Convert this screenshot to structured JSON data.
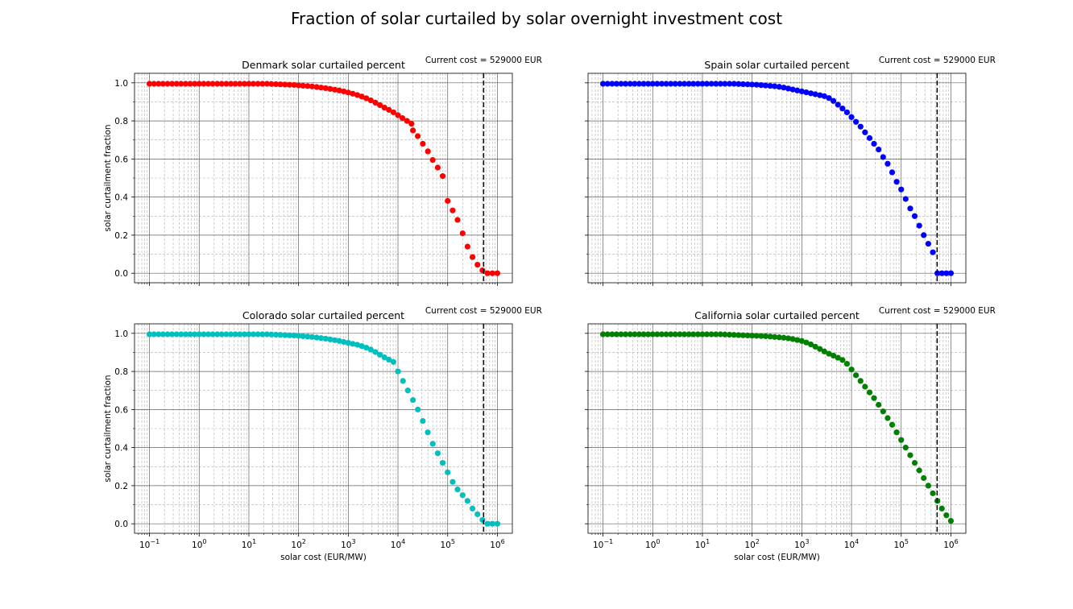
{
  "figure_title": "Fraction of solar curtailed by solar overnight investment cost",
  "chart_data": [
    {
      "type": "scatter",
      "title": "Denmark solar curtailed percent",
      "annotation": "Current cost = 529000 EUR",
      "current_cost": 529000,
      "color": "#ff0000",
      "xscale": "log",
      "xlim": [
        0.05,
        2000000
      ],
      "ylim": [
        -0.05,
        1.05
      ],
      "grid": true,
      "xlabel": "",
      "ylabel": "solar curtailment fraction",
      "x": [
        0.1,
        0.123,
        0.152,
        0.187,
        0.231,
        0.284,
        0.351,
        0.433,
        0.534,
        0.658,
        0.811,
        1.0,
        1.23,
        1.52,
        1.87,
        2.31,
        2.84,
        3.51,
        4.33,
        5.34,
        6.58,
        8.11,
        10,
        12.3,
        15.2,
        18.7,
        23.1,
        28.4,
        35.1,
        43.3,
        53.4,
        65.8,
        81.1,
        100,
        123,
        152,
        187,
        231,
        284,
        351,
        433,
        534,
        658,
        811,
        1000,
        1230,
        1520,
        1870,
        2310,
        2840,
        3510,
        4330,
        5340,
        6580,
        8110,
        10000,
        12300,
        15200,
        18700,
        20000,
        25000,
        31600,
        40000,
        50000,
        63100,
        79400,
        100000,
        126000,
        158000,
        200000,
        251000,
        316000,
        398000,
        501000,
        631000,
        794000,
        1000000
      ],
      "y": [
        0.995,
        0.995,
        0.995,
        0.995,
        0.995,
        0.995,
        0.995,
        0.995,
        0.995,
        0.995,
        0.995,
        0.995,
        0.995,
        0.995,
        0.995,
        0.995,
        0.995,
        0.995,
        0.995,
        0.995,
        0.995,
        0.995,
        0.995,
        0.995,
        0.995,
        0.995,
        0.995,
        0.994,
        0.993,
        0.992,
        0.991,
        0.99,
        0.989,
        0.987,
        0.985,
        0.983,
        0.981,
        0.978,
        0.975,
        0.972,
        0.968,
        0.964,
        0.96,
        0.955,
        0.949,
        0.943,
        0.936,
        0.928,
        0.919,
        0.908,
        0.896,
        0.883,
        0.87,
        0.858,
        0.845,
        0.83,
        0.815,
        0.8,
        0.785,
        0.75,
        0.72,
        0.68,
        0.64,
        0.595,
        0.555,
        0.51,
        0.38,
        0.33,
        0.28,
        0.21,
        0.14,
        0.085,
        0.045,
        0.015,
        0.0,
        0.0,
        0.0
      ]
    },
    {
      "type": "scatter",
      "title": "Spain solar curtailed percent",
      "annotation": "Current cost = 529000 EUR",
      "current_cost": 529000,
      "color": "#0000ff",
      "xscale": "log",
      "xlim": [
        0.05,
        2000000
      ],
      "ylim": [
        -0.05,
        1.05
      ],
      "grid": true,
      "xlabel": "",
      "ylabel": "",
      "x": [
        0.1,
        0.123,
        0.152,
        0.187,
        0.231,
        0.284,
        0.351,
        0.433,
        0.534,
        0.658,
        0.811,
        1.0,
        1.23,
        1.52,
        1.87,
        2.31,
        2.84,
        3.51,
        4.33,
        5.34,
        6.58,
        8.11,
        10,
        12.3,
        15.2,
        18.7,
        23.1,
        28.4,
        35.1,
        43.3,
        53.4,
        65.8,
        81.1,
        100,
        123,
        152,
        187,
        231,
        284,
        351,
        433,
        534,
        658,
        811,
        1000,
        1230,
        1520,
        1870,
        2310,
        2840,
        3510,
        4330,
        5340,
        6580,
        8110,
        10000,
        12300,
        15200,
        18700,
        23100,
        28400,
        35100,
        43300,
        53400,
        65800,
        81100,
        100000,
        123000,
        152000,
        187000,
        231000,
        284000,
        351000,
        433000,
        534000,
        658000,
        811000,
        1000000
      ],
      "y": [
        0.995,
        0.995,
        0.995,
        0.995,
        0.995,
        0.995,
        0.995,
        0.995,
        0.995,
        0.995,
        0.995,
        0.995,
        0.995,
        0.995,
        0.995,
        0.995,
        0.995,
        0.995,
        0.995,
        0.995,
        0.995,
        0.995,
        0.995,
        0.995,
        0.995,
        0.995,
        0.995,
        0.995,
        0.995,
        0.995,
        0.994,
        0.993,
        0.992,
        0.991,
        0.99,
        0.988,
        0.986,
        0.984,
        0.982,
        0.979,
        0.975,
        0.97,
        0.965,
        0.96,
        0.955,
        0.95,
        0.945,
        0.94,
        0.935,
        0.93,
        0.92,
        0.905,
        0.885,
        0.865,
        0.845,
        0.82,
        0.795,
        0.77,
        0.74,
        0.71,
        0.68,
        0.65,
        0.61,
        0.575,
        0.53,
        0.48,
        0.44,
        0.39,
        0.34,
        0.3,
        0.25,
        0.2,
        0.155,
        0.11,
        0.0,
        0.0,
        0.0,
        0.0
      ]
    },
    {
      "type": "scatter",
      "title": "Colorado solar curtailed percent",
      "annotation": "Current cost = 529000 EUR",
      "current_cost": 529000,
      "color": "#00bfbf",
      "xscale": "log",
      "xlim": [
        0.05,
        2000000
      ],
      "ylim": [
        -0.05,
        1.05
      ],
      "grid": true,
      "xlabel": "solar cost (EUR/MW)",
      "ylabel": "solar curtailment fraction",
      "x": [
        0.1,
        0.123,
        0.152,
        0.187,
        0.231,
        0.284,
        0.351,
        0.433,
        0.534,
        0.658,
        0.811,
        1.0,
        1.23,
        1.52,
        1.87,
        2.31,
        2.84,
        3.51,
        4.33,
        5.34,
        6.58,
        8.11,
        10,
        12.3,
        15.2,
        18.7,
        23.1,
        28.4,
        35.1,
        43.3,
        53.4,
        65.8,
        81.1,
        100,
        123,
        152,
        187,
        231,
        284,
        351,
        433,
        534,
        658,
        811,
        1000,
        1230,
        1520,
        1870,
        2310,
        2840,
        3510,
        4330,
        5340,
        6580,
        8110,
        10000,
        12600,
        15800,
        20000,
        25100,
        31600,
        39800,
        50100,
        63100,
        79400,
        100000,
        126000,
        158000,
        200000,
        251000,
        316000,
        398000,
        501000,
        631000,
        794000,
        1000000
      ],
      "y": [
        0.995,
        0.995,
        0.995,
        0.995,
        0.995,
        0.995,
        0.995,
        0.995,
        0.995,
        0.995,
        0.995,
        0.995,
        0.995,
        0.995,
        0.995,
        0.995,
        0.995,
        0.995,
        0.995,
        0.995,
        0.995,
        0.995,
        0.995,
        0.995,
        0.995,
        0.995,
        0.995,
        0.994,
        0.993,
        0.992,
        0.991,
        0.99,
        0.989,
        0.987,
        0.985,
        0.983,
        0.981,
        0.978,
        0.975,
        0.972,
        0.968,
        0.964,
        0.96,
        0.955,
        0.95,
        0.945,
        0.94,
        0.933,
        0.925,
        0.915,
        0.902,
        0.888,
        0.874,
        0.862,
        0.85,
        0.8,
        0.75,
        0.7,
        0.65,
        0.6,
        0.54,
        0.48,
        0.42,
        0.37,
        0.32,
        0.27,
        0.22,
        0.18,
        0.15,
        0.12,
        0.08,
        0.05,
        0.02,
        0.0,
        0.0,
        0.0
      ]
    },
    {
      "type": "scatter",
      "title": "California solar curtailed percent",
      "annotation": "Current cost = 529000 EUR",
      "current_cost": 529000,
      "color": "#008000",
      "xscale": "log",
      "xlim": [
        0.05,
        2000000
      ],
      "ylim": [
        -0.05,
        1.05
      ],
      "grid": true,
      "xlabel": "solar cost (EUR/MW)",
      "ylabel": "",
      "x": [
        0.1,
        0.123,
        0.152,
        0.187,
        0.231,
        0.284,
        0.351,
        0.433,
        0.534,
        0.658,
        0.811,
        1.0,
        1.23,
        1.52,
        1.87,
        2.31,
        2.84,
        3.51,
        4.33,
        5.34,
        6.58,
        8.11,
        10,
        12.3,
        15.2,
        18.7,
        23.1,
        28.4,
        35.1,
        43.3,
        53.4,
        65.8,
        81.1,
        100,
        123,
        152,
        187,
        231,
        284,
        351,
        433,
        534,
        658,
        811,
        1000,
        1230,
        1520,
        1870,
        2310,
        2840,
        3510,
        4330,
        5340,
        6580,
        8110,
        10000,
        12300,
        15200,
        18700,
        23100,
        28400,
        35100,
        43300,
        53400,
        65800,
        81100,
        100000,
        123000,
        152000,
        187000,
        231000,
        284000,
        351000,
        433000,
        534000,
        658000,
        811000,
        1000000
      ],
      "y": [
        0.995,
        0.995,
        0.995,
        0.995,
        0.995,
        0.995,
        0.995,
        0.995,
        0.995,
        0.995,
        0.995,
        0.995,
        0.995,
        0.995,
        0.995,
        0.995,
        0.995,
        0.995,
        0.995,
        0.995,
        0.995,
        0.995,
        0.995,
        0.995,
        0.995,
        0.995,
        0.995,
        0.994,
        0.993,
        0.992,
        0.991,
        0.99,
        0.989,
        0.988,
        0.987,
        0.986,
        0.985,
        0.983,
        0.981,
        0.979,
        0.977,
        0.974,
        0.97,
        0.965,
        0.96,
        0.952,
        0.942,
        0.93,
        0.918,
        0.905,
        0.893,
        0.883,
        0.872,
        0.86,
        0.84,
        0.81,
        0.78,
        0.75,
        0.72,
        0.69,
        0.66,
        0.625,
        0.59,
        0.555,
        0.52,
        0.48,
        0.44,
        0.4,
        0.36,
        0.32,
        0.28,
        0.24,
        0.2,
        0.16,
        0.12,
        0.08,
        0.045,
        0.015
      ]
    }
  ]
}
